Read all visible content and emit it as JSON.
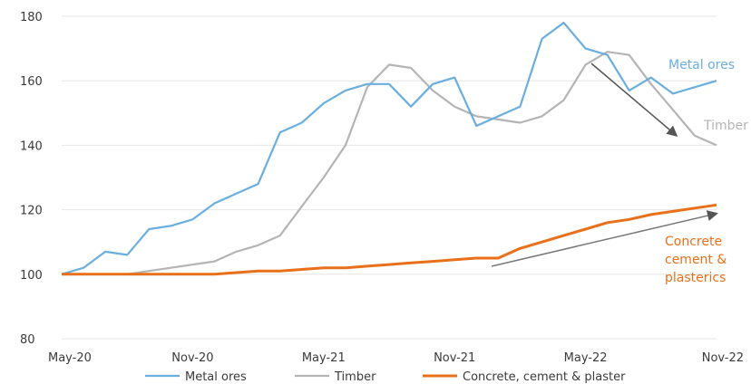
{
  "chart_data": {
    "type": "line",
    "x": [
      "May-20",
      "Jun-20",
      "Jul-20",
      "Aug-20",
      "Sep-20",
      "Oct-20",
      "Nov-20",
      "Dec-20",
      "Jan-21",
      "Feb-21",
      "Mar-21",
      "Apr-21",
      "May-21",
      "Jun-21",
      "Jul-21",
      "Aug-21",
      "Sep-21",
      "Oct-21",
      "Nov-21",
      "Dec-21",
      "Jan-22",
      "Feb-22",
      "Mar-22",
      "Apr-22",
      "May-22",
      "Jun-22",
      "Jul-22",
      "Aug-22",
      "Sep-22",
      "Oct-22",
      "Nov-22"
    ],
    "x_tick_labels": [
      "May-20",
      "Nov-20",
      "May-21",
      "Nov-21",
      "May-22",
      "Nov-22"
    ],
    "y_ticks": [
      80,
      100,
      120,
      140,
      160,
      180
    ],
    "ylim": [
      80,
      180
    ],
    "grid": "horizontal",
    "legend_position": "bottom",
    "series": [
      {
        "name": "Metal ores",
        "color": "#6aaee0",
        "values": [
          100,
          102,
          107,
          106,
          114,
          115,
          117,
          122,
          125,
          128,
          144,
          147,
          153,
          157,
          159,
          159,
          152,
          159,
          161,
          146,
          149,
          152,
          173,
          178,
          170,
          168,
          157,
          161,
          156,
          158,
          160
        ]
      },
      {
        "name": "Timber",
        "color": "#b4b4b4",
        "values": [
          100,
          100,
          100,
          100,
          101,
          102,
          103,
          104,
          107,
          109,
          112,
          121,
          130,
          140,
          158,
          165,
          164,
          157,
          152,
          149,
          148,
          147,
          149,
          154,
          165,
          169,
          168,
          159,
          151,
          143,
          140
        ]
      },
      {
        "name": "Concrete, cement & plaster",
        "color": "#e8701a",
        "values": [
          100,
          100,
          100,
          100,
          100,
          100,
          100,
          100,
          100.5,
          101,
          101,
          101.5,
          102,
          102,
          102.5,
          103,
          103.5,
          104,
          104.5,
          105,
          105,
          108,
          110,
          112,
          114,
          116,
          117,
          118.5,
          119.5,
          120.5,
          121.5
        ]
      }
    ],
    "annotations": [
      {
        "text": "Metal ores",
        "color": "#6aaee0"
      },
      {
        "text": "Timber",
        "color": "#b4b4b4"
      },
      {
        "text": "Concrete cement & plasterics",
        "color": "#e8701a"
      }
    ]
  }
}
